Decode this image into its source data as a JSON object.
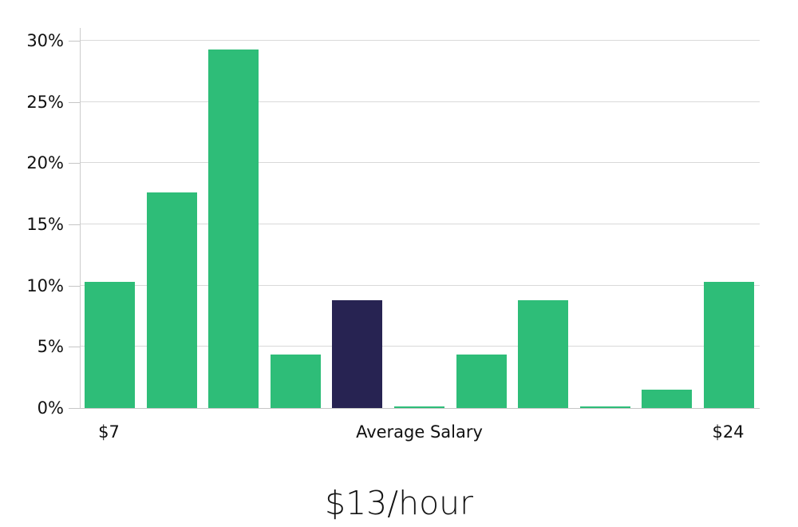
{
  "chart_data": {
    "type": "bar",
    "title": "$13/hour",
    "x_axis_label": "Average Salary",
    "x_first_tick_label": "$7",
    "x_last_tick_label": "$24",
    "values": [
      10.3,
      17.6,
      29.3,
      4.4,
      8.8,
      0.1,
      4.4,
      8.8,
      0.1,
      1.5,
      10.3
    ],
    "highlight_index": 4,
    "ylim": [
      0,
      30
    ],
    "ytick_step": 5,
    "ytick_labels": [
      "0%",
      "5%",
      "10%",
      "15%",
      "20%",
      "25%",
      "30%"
    ],
    "grid": true,
    "legend": "none",
    "colors": {
      "bar": "#2ebd78",
      "highlight_bar": "#272352",
      "gridline": "#d9d9d9",
      "axis_line": "#c6c6c6",
      "text": "#111111"
    }
  }
}
